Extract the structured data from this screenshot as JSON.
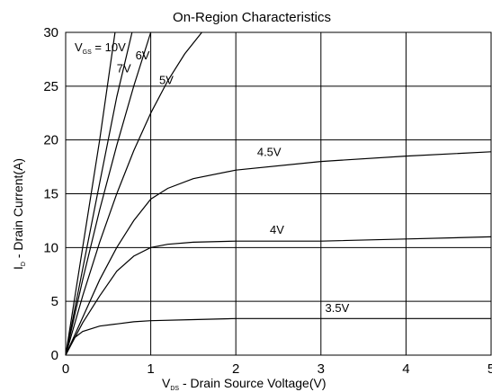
{
  "chart_data": {
    "type": "line",
    "title": "On-Region Characteristics",
    "xlabel": "V_DS - Drain Source Voltage(V)",
    "ylabel": "I_D - Drain Current(A)",
    "xlim": [
      0,
      5
    ],
    "ylim": [
      0,
      30
    ],
    "xticks": [
      0,
      1,
      2,
      3,
      4,
      5
    ],
    "yticks": [
      0,
      5,
      10,
      15,
      20,
      25,
      30
    ],
    "grid": true,
    "vgs_prefix_label": "V_GS = 10V",
    "series": [
      {
        "name": "10V",
        "x": [
          0,
          0.2,
          0.4,
          0.58
        ],
        "y": [
          0,
          10,
          20,
          30
        ]
      },
      {
        "name": "7V",
        "x": [
          0,
          0.2,
          0.4,
          0.6,
          0.78
        ],
        "y": [
          0,
          8,
          16,
          24,
          30
        ]
      },
      {
        "name": "6V",
        "x": [
          0,
          0.2,
          0.4,
          0.6,
          0.8,
          1.0
        ],
        "y": [
          0,
          7,
          13.5,
          19.5,
          25,
          30
        ]
      },
      {
        "name": "5V",
        "x": [
          0,
          0.2,
          0.4,
          0.6,
          0.8,
          1.0,
          1.2,
          1.4,
          1.6
        ],
        "y": [
          0,
          5.5,
          10.5,
          15,
          19,
          22.5,
          25.5,
          28,
          30
        ]
      },
      {
        "name": "4.5V",
        "x": [
          0,
          0.2,
          0.4,
          0.6,
          0.8,
          1.0,
          1.2,
          1.5,
          2.0,
          3.0,
          4.0,
          5.0
        ],
        "y": [
          0,
          3.5,
          7,
          10,
          12.5,
          14.5,
          15.5,
          16.4,
          17.2,
          18,
          18.5,
          18.9
        ]
      },
      {
        "name": "4V",
        "x": [
          0,
          0.2,
          0.4,
          0.6,
          0.8,
          1.0,
          1.2,
          1.5,
          2.0,
          3.0,
          4.0,
          5.0
        ],
        "y": [
          0,
          3,
          5.5,
          7.8,
          9.2,
          10,
          10.3,
          10.5,
          10.6,
          10.6,
          10.8,
          11
        ]
      },
      {
        "name": "3.5V",
        "x": [
          0,
          0.1,
          0.2,
          0.4,
          0.6,
          0.8,
          1.0,
          1.5,
          2.0,
          3.0,
          4.0,
          5.0
        ],
        "y": [
          0,
          1.6,
          2.2,
          2.7,
          2.9,
          3.1,
          3.2,
          3.3,
          3.4,
          3.4,
          3.4,
          3.4
        ]
      }
    ],
    "labels": [
      {
        "text": "7V",
        "x": 0.6,
        "y": 26.3
      },
      {
        "text": "6V",
        "x": 0.82,
        "y": 27.5
      },
      {
        "text": "5V",
        "x": 1.1,
        "y": 25.2
      },
      {
        "text": "4.5V",
        "x": 2.25,
        "y": 18.5
      },
      {
        "text": "4V",
        "x": 2.4,
        "y": 11.3
      },
      {
        "text": "3.5V",
        "x": 3.05,
        "y": 4.0
      }
    ]
  }
}
